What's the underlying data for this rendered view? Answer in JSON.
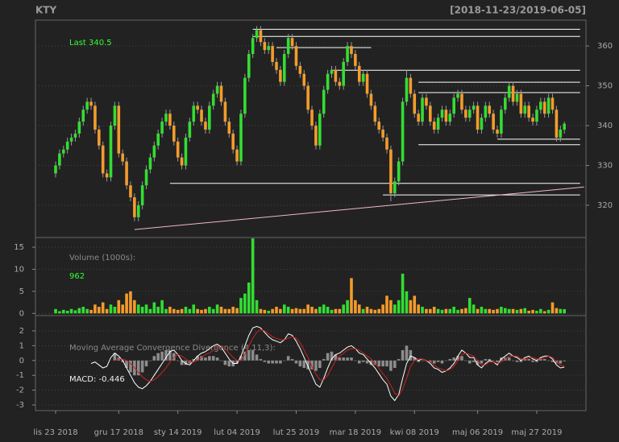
{
  "chart_data": {
    "type": "candlestick",
    "title": "KTY",
    "subtitle": "[2018-11-23/2019-06-05]",
    "categories": [
      "lis 23 2018",
      null,
      null,
      null,
      null,
      null,
      null,
      null,
      null,
      null,
      null,
      null,
      null,
      null,
      null,
      null,
      "gru 17 2018",
      null,
      null,
      null,
      null,
      null,
      null,
      null,
      null,
      null,
      null,
      null,
      null,
      null,
      null,
      "sty 14 2019",
      null,
      null,
      null,
      null,
      null,
      null,
      null,
      null,
      null,
      null,
      null,
      null,
      null,
      null,
      "lut 04 2019",
      null,
      null,
      null,
      null,
      null,
      null,
      null,
      null,
      null,
      null,
      null,
      null,
      null,
      null,
      "lut 25 2019",
      null,
      null,
      null,
      null,
      null,
      null,
      null,
      null,
      null,
      null,
      null,
      null,
      null,
      null,
      "mar 18 2019",
      null,
      null,
      null,
      null,
      null,
      null,
      null,
      null,
      null,
      null,
      null,
      null,
      null,
      null,
      "kwi 08 2019",
      null,
      null,
      null,
      null,
      null,
      null,
      null,
      null,
      null,
      null,
      null,
      null,
      null,
      null,
      null,
      "maj 06 2019",
      null,
      null,
      null,
      null,
      null,
      null,
      null,
      null,
      null,
      null,
      null,
      null,
      null,
      null,
      "maj 27 2019",
      null,
      null,
      null,
      null,
      null,
      null,
      null
    ],
    "open": [
      328,
      330,
      333,
      334,
      336,
      337,
      338,
      341,
      344,
      346,
      345,
      339,
      335,
      328,
      327,
      340,
      345,
      333,
      331,
      325,
      322,
      317,
      320,
      325,
      329,
      332,
      335,
      338,
      341,
      343,
      340,
      336,
      332,
      330,
      337,
      341,
      345,
      344,
      341,
      339,
      345,
      348,
      350,
      346,
      341,
      338,
      334,
      331,
      343,
      352,
      358,
      362,
      364,
      361,
      359,
      360,
      356,
      354,
      351,
      358,
      362,
      360,
      355,
      353,
      350,
      344,
      340,
      335,
      343,
      349,
      353,
      354,
      351,
      350,
      356,
      360,
      358,
      355,
      351,
      353,
      348,
      345,
      341,
      339,
      337,
      334,
      323,
      326,
      331,
      346,
      352,
      348,
      343,
      341,
      347,
      345,
      341,
      339,
      342,
      344,
      341,
      343,
      347,
      348,
      344,
      342,
      344,
      345,
      339,
      342,
      345,
      343,
      339,
      338,
      344,
      347,
      350,
      346,
      348,
      343,
      345,
      342,
      341,
      344,
      346,
      343,
      347,
      344,
      337,
      339
    ],
    "high": [
      331,
      334,
      335,
      337,
      338,
      339,
      342,
      345,
      347,
      347,
      346,
      340,
      336,
      329,
      341,
      346,
      346,
      334,
      332,
      326,
      323,
      321,
      326,
      330,
      333,
      336,
      339,
      342,
      344,
      344,
      341,
      337,
      333,
      338,
      342,
      346,
      346,
      345,
      342,
      346,
      349,
      351,
      351,
      347,
      342,
      339,
      335,
      344,
      353,
      359,
      363,
      365,
      365,
      362,
      361,
      361,
      357,
      355,
      359,
      363,
      363,
      361,
      356,
      354,
      351,
      345,
      341,
      344,
      350,
      354,
      355,
      355,
      352,
      357,
      361,
      361,
      359,
      356,
      354,
      354,
      349,
      346,
      342,
      340,
      338,
      335,
      327,
      332,
      347,
      354,
      353,
      349,
      344,
      348,
      348,
      346,
      342,
      343,
      345,
      345,
      344,
      348,
      349,
      349,
      345,
      345,
      346,
      346,
      343,
      346,
      346,
      344,
      340,
      345,
      348,
      351,
      351,
      349,
      349,
      346,
      346,
      343,
      345,
      347,
      347,
      348,
      348,
      345,
      340,
      341
    ],
    "low": [
      327,
      329,
      332,
      333,
      335,
      336,
      337,
      340,
      343,
      344,
      338,
      334,
      327,
      326,
      326,
      339,
      332,
      330,
      324,
      321,
      316,
      316,
      319,
      324,
      328,
      331,
      334,
      337,
      340,
      339,
      335,
      331,
      329,
      329,
      336,
      340,
      343,
      340,
      338,
      338,
      344,
      347,
      345,
      340,
      337,
      333,
      330,
      330,
      342,
      351,
      357,
      361,
      360,
      358,
      358,
      355,
      353,
      350,
      350,
      357,
      359,
      354,
      352,
      349,
      343,
      339,
      334,
      334,
      342,
      348,
      352,
      350,
      349,
      349,
      355,
      357,
      354,
      350,
      350,
      347,
      344,
      340,
      338,
      336,
      333,
      321,
      322,
      325,
      330,
      345,
      347,
      342,
      340,
      340,
      344,
      340,
      338,
      338,
      341,
      340,
      340,
      342,
      346,
      343,
      341,
      341,
      343,
      338,
      338,
      341,
      342,
      338,
      337,
      337,
      343,
      346,
      345,
      345,
      342,
      342,
      341,
      340,
      340,
      343,
      342,
      342,
      343,
      336,
      336,
      338
    ],
    "close": [
      330,
      333,
      334,
      336,
      337,
      338,
      341,
      344,
      346,
      345,
      339,
      335,
      328,
      327,
      340,
      345,
      333,
      331,
      325,
      322,
      317,
      320,
      325,
      329,
      332,
      335,
      338,
      341,
      343,
      340,
      336,
      332,
      330,
      337,
      341,
      345,
      344,
      341,
      339,
      345,
      348,
      350,
      346,
      341,
      338,
      334,
      331,
      343,
      352,
      358,
      362,
      364,
      361,
      359,
      360,
      356,
      354,
      351,
      358,
      362,
      360,
      355,
      353,
      350,
      344,
      340,
      335,
      343,
      349,
      353,
      354,
      351,
      350,
      356,
      360,
      358,
      355,
      351,
      353,
      348,
      345,
      341,
      339,
      337,
      334,
      323,
      326,
      331,
      346,
      352,
      348,
      343,
      341,
      347,
      345,
      341,
      339,
      342,
      344,
      341,
      343,
      347,
      348,
      344,
      342,
      344,
      345,
      339,
      342,
      345,
      343,
      339,
      338,
      344,
      347,
      350,
      346,
      348,
      343,
      345,
      342,
      341,
      344,
      346,
      343,
      347,
      344,
      337,
      339,
      340.5
    ],
    "up_color": "#33dd33",
    "down_color": "#f39c2b",
    "last_label": "Last 340.5",
    "ylim": [
      311.9,
      366.5
    ],
    "yticks": [
      320,
      330,
      340,
      350,
      360
    ],
    "grid": true,
    "levels": [
      {
        "y": 364.2,
        "from": 50,
        "to": 133
      },
      {
        "y": 362.4,
        "from": 50,
        "to": 133
      },
      {
        "y": 359.6,
        "from": 56,
        "to": 80
      },
      {
        "y": 353.9,
        "from": 70,
        "to": 133
      },
      {
        "y": 350.9,
        "from": 92,
        "to": 133
      },
      {
        "y": 348.3,
        "from": 92,
        "to": 133
      },
      {
        "y": 336.6,
        "from": 112,
        "to": 133
      },
      {
        "y": 335.2,
        "from": 92,
        "to": 133
      },
      {
        "y": 325.5,
        "from": 29,
        "to": 133
      },
      {
        "y": 322.6,
        "from": 83,
        "to": 133
      }
    ],
    "level_color": "#ffffff",
    "trendline": {
      "from": [
        20,
        313.9
      ],
      "to": [
        134,
        324.6
      ],
      "color": "#f2b8c6"
    },
    "volume": {
      "title": "Volume (1000s):",
      "last_label": "962",
      "values": [
        1,
        0.5,
        0.8,
        0.6,
        1,
        0.7,
        1.2,
        1.5,
        1,
        0.8,
        2,
        1.5,
        2.5,
        1,
        2,
        1.5,
        3,
        2,
        4.5,
        5,
        3,
        2,
        1.5,
        2,
        1,
        2.5,
        1.5,
        3,
        1,
        1.5,
        1,
        0.8,
        1,
        1.5,
        1,
        2,
        1,
        0.8,
        1,
        1.5,
        1,
        2,
        1.5,
        1,
        1,
        1.5,
        1.2,
        3.5,
        4.5,
        7,
        17,
        3,
        1,
        0.8,
        0.6,
        1,
        1.5,
        1,
        2,
        1.5,
        1,
        1.2,
        1,
        1,
        2,
        1.5,
        1,
        1.5,
        2,
        1.5,
        0.8,
        1,
        1,
        2,
        3,
        8,
        3,
        2,
        1,
        1.5,
        1,
        0.8,
        1,
        2,
        4,
        3,
        2,
        3,
        9,
        5,
        3,
        4,
        2,
        1.5,
        1,
        1,
        1.5,
        1,
        0.8,
        1,
        1,
        1.5,
        0.8,
        1,
        1.2,
        3.5,
        2,
        1,
        1.5,
        1,
        1,
        0.8,
        1,
        1.5,
        1.2,
        1,
        1,
        0.8,
        1,
        1.2,
        0.6,
        0.8,
        0.6,
        1,
        0.5,
        0.8,
        2.5,
        1.2,
        1,
        0.962
      ],
      "ylim": [
        -0.5,
        17.2
      ],
      "yticks": [
        0,
        5,
        10,
        15
      ]
    },
    "macd": {
      "title": "Moving Average Convergence Divergence (4,11,3):",
      "last_label": "MACD: -0.446",
      "series": [
        {
          "color": "#ffffff",
          "values": [
            null,
            null,
            null,
            null,
            null,
            null,
            null,
            null,
            null,
            -0.2,
            -0.1,
            -0.3,
            -0.5,
            -0.4,
            0.2,
            0.5,
            0.3,
            0,
            -0.5,
            -1.0,
            -1.5,
            -1.8,
            -1.9,
            -1.7,
            -1.4,
            -1.0,
            -0.6,
            -0.2,
            0.2,
            0.6,
            0.7,
            0.4,
            0.0,
            -0.2,
            -0.3,
            0.0,
            0.3,
            0.5,
            0.6,
            0.8,
            1.0,
            1.1,
            0.9,
            0.5,
            0.1,
            -0.2,
            -0.2,
            0.3,
            1.0,
            1.7,
            2.2,
            2.3,
            2.2,
            1.9,
            1.6,
            1.4,
            1.3,
            1.2,
            1.4,
            1.8,
            1.7,
            1.3,
            0.8,
            0.2,
            -0.4,
            -1.0,
            -1.6,
            -1.8,
            -1.2,
            -0.5,
            0.1,
            0.4,
            0.5,
            0.7,
            0.9,
            1.0,
            0.8,
            0.5,
            0.4,
            0.1,
            -0.2,
            -0.5,
            -0.9,
            -1.3,
            -1.6,
            -2.4,
            -2.7,
            -2.3,
            -1.2,
            -0.2,
            0.3,
            0.2,
            0.0,
            0.1,
            0.0,
            -0.2,
            -0.5,
            -0.6,
            -0.8,
            -0.7,
            -0.5,
            -0.2,
            0.3,
            0.7,
            0.5,
            0.2,
            0.2,
            -0.3,
            -0.5,
            -0.2,
            0.0,
            -0.1,
            -0.3,
            0.1,
            0.3,
            0.5,
            0.3,
            0.2,
            0.0,
            0.2,
            0.3,
            0.1,
            0.0,
            0.2,
            0.3,
            0.3,
            0.1,
            -0.3,
            -0.5,
            -0.446
          ]
        },
        {
          "color": "#cc2222",
          "values": [
            null,
            null,
            null,
            null,
            null,
            null,
            null,
            null,
            null,
            null,
            null,
            null,
            null,
            null,
            null,
            0,
            0.1,
            0.1,
            0,
            -0.2,
            -0.5,
            -0.8,
            -1.1,
            -1.3,
            -1.4,
            -1.3,
            -1.1,
            -0.8,
            -0.5,
            -0.1,
            0.2,
            0.4,
            0.3,
            0.1,
            -0.1,
            -0.1,
            0.0,
            0.2,
            0.4,
            0.5,
            0.7,
            0.9,
            0.9,
            0.8,
            0.5,
            0.2,
            0.0,
            0.0,
            0.4,
            1.0,
            1.5,
            1.9,
            2.1,
            2.0,
            1.8,
            1.6,
            1.5,
            1.4,
            1.4,
            1.5,
            1.6,
            1.5,
            1.2,
            0.7,
            0.2,
            -0.4,
            -0.9,
            -1.3,
            -1.3,
            -1.0,
            -0.5,
            0.0,
            0.3,
            0.5,
            0.7,
            0.8,
            0.8,
            0.7,
            0.5,
            0.3,
            0.1,
            -0.2,
            -0.5,
            -0.9,
            -1.2,
            -1.7,
            -2.2,
            -2.4,
            -1.9,
            -1.2,
            -0.4,
            0.0,
            0.1,
            0.1,
            0.0,
            -0.1,
            -0.3,
            -0.5,
            -0.6,
            -0.7,
            -0.6,
            -0.4,
            0.0,
            0.4,
            0.5,
            0.4,
            0.3,
            0.0,
            -0.3,
            -0.3,
            -0.1,
            -0.1,
            -0.2,
            -0.1,
            0.1,
            0.3,
            0.3,
            0.3,
            0.1,
            0.1,
            0.2,
            0.2,
            0.1,
            0.1,
            0.2,
            0.3,
            0.2,
            -0.1,
            -0.3,
            -0.4
          ]
        }
      ],
      "histogram_color": "#8c8c8c",
      "ylim": [
        -3.38,
        3.03
      ],
      "yticks": [
        -3,
        -2,
        -1,
        0,
        1,
        2
      ]
    }
  }
}
